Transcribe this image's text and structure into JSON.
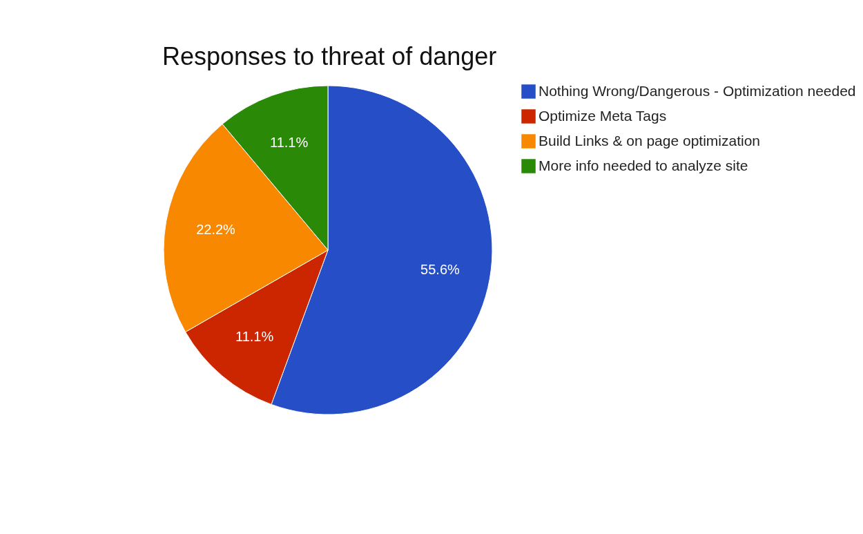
{
  "chart_data": {
    "type": "pie",
    "title": "Responses to threat of danger",
    "categories": [
      "Nothing Wrong/Dangerous - Optimization needed",
      "Optimize Meta Tags",
      "Build Links & on page optimization",
      "More info needed to analyze site"
    ],
    "values": [
      55.6,
      11.1,
      22.2,
      11.1
    ],
    "colors": [
      "#254ec7",
      "#cc2600",
      "#f78800",
      "#2a8a08"
    ],
    "value_labels": [
      "55.6%",
      "11.1%",
      "22.2%",
      "11.1%"
    ],
    "legend": "right"
  }
}
